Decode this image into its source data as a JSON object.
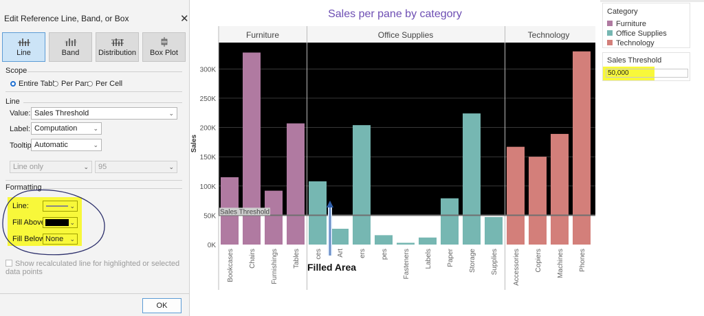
{
  "dialog": {
    "title": "Edit Reference Line, Band, or Box",
    "mark_types": [
      {
        "label": "Line",
        "icon": "reference-line-icon",
        "selected": true
      },
      {
        "label": "Band",
        "icon": "reference-band-icon",
        "selected": false
      },
      {
        "label": "Distribution",
        "icon": "distribution-icon",
        "selected": false
      },
      {
        "label": "Box Plot",
        "icon": "box-plot-icon",
        "selected": false
      }
    ],
    "scope": {
      "label": "Scope",
      "options": [
        {
          "label": "Entire Table",
          "selected": true
        },
        {
          "label": "Per Pane",
          "selected": false
        },
        {
          "label": "Per Cell",
          "selected": false
        }
      ]
    },
    "line": {
      "section": "Line",
      "value_label": "Value:",
      "value": "Sales Threshold",
      "label_label": "Label:",
      "label": "Computation",
      "tooltip_label": "Tooltip:",
      "tooltip": "Automatic",
      "line_only": "Line only",
      "percent": "95"
    },
    "formatting": {
      "section": "Formatting",
      "line_label": "Line:",
      "fill_above_label": "Fill Above:",
      "fill_below_label": "Fill Below:",
      "fill_below_value": "None",
      "fill_above_color": "#000000"
    },
    "recalc_checkbox": "Show recalculated line for highlighted or selected data points",
    "ok": "OK"
  },
  "chart": {
    "title": "Sales per pane by category",
    "annotation": "Filled Area",
    "ref_line_label": "Sales Threshold"
  },
  "chart_data": {
    "type": "bar",
    "title": "Sales per pane by category",
    "ylabel": "Sales",
    "ylim": [
      0,
      345000
    ],
    "yticks": [
      "0K",
      "50K",
      "100K",
      "150K",
      "200K",
      "250K",
      "300K"
    ],
    "ytick_values": [
      0,
      50000,
      100000,
      150000,
      200000,
      250000,
      300000
    ],
    "reference_line": {
      "name": "Sales Threshold",
      "value": 50000,
      "fill_above": "#000000"
    },
    "panes": [
      {
        "name": "Furniture",
        "color": "#b07aa1",
        "categories": [
          "Bookcases",
          "Chairs",
          "Furnishings",
          "Tables"
        ],
        "values": [
          115000,
          328000,
          92000,
          207000
        ]
      },
      {
        "name": "Office Supplies",
        "color": "#76b7b2",
        "categories": [
          "Appliances",
          "Art",
          "Binders",
          "Envelopes",
          "Fasteners",
          "Labels",
          "Paper",
          "Storage",
          "Supplies"
        ],
        "tick_labels": [
          "ces",
          "Art",
          "ers",
          "pes",
          "Fasteners",
          "Labels",
          "Paper",
          "Storage",
          "Supplies"
        ],
        "values": [
          108000,
          27000,
          204000,
          16000,
          3000,
          12000,
          79000,
          224000,
          47000
        ]
      },
      {
        "name": "Technology",
        "color": "#d37f7a",
        "categories": [
          "Accessories",
          "Copiers",
          "Machines",
          "Phones"
        ],
        "values": [
          167000,
          150000,
          189000,
          330000
        ]
      }
    ]
  },
  "legend": {
    "title": "Category",
    "items": [
      {
        "label": "Furniture",
        "color": "#b07aa1"
      },
      {
        "label": "Office Supplies",
        "color": "#76b7b2"
      },
      {
        "label": "Technology",
        "color": "#d37f7a"
      }
    ]
  },
  "parameter": {
    "title": "Sales Threshold",
    "value": "50,000"
  },
  "colors": {
    "highlight": "#f8f83a",
    "selection_accent": "#1e6fd0",
    "title_color": "#6d4eb3"
  }
}
